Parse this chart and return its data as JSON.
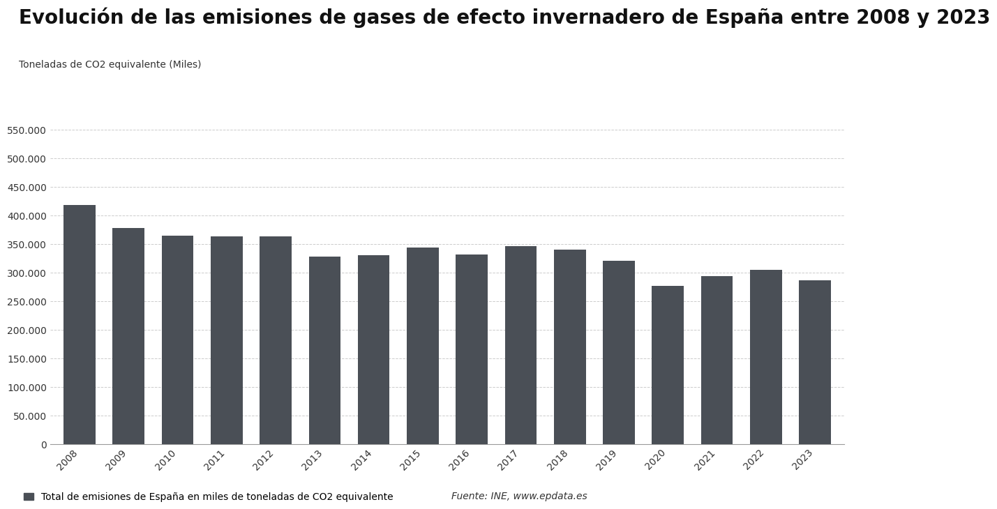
{
  "title": "Evolución de las emisiones de gases de efecto invernadero de España entre 2008 y 2023",
  "ylabel": "Toneladas de CO2 equivalente (Miles)",
  "years": [
    2008,
    2009,
    2010,
    2011,
    2012,
    2013,
    2014,
    2015,
    2016,
    2017,
    2018,
    2019,
    2020,
    2021,
    2022,
    2023
  ],
  "values": [
    419000,
    378000,
    365000,
    364000,
    364000,
    328000,
    330000,
    344000,
    332000,
    347000,
    340000,
    321000,
    277000,
    294000,
    305000,
    287000
  ],
  "bar_color": "#4a4f56",
  "background_color": "#ffffff",
  "grid_color": "#cccccc",
  "ylim": [
    0,
    550000
  ],
  "yticks": [
    0,
    50000,
    100000,
    150000,
    200000,
    250000,
    300000,
    350000,
    400000,
    450000,
    500000,
    550000
  ],
  "legend_label": "Total de emisiones de España en miles de toneladas de CO2 equivalente",
  "source_text": "Fuente: INE, www.epdata.es",
  "title_fontsize": 20,
  "ylabel_fontsize": 10,
  "tick_fontsize": 10,
  "legend_fontsize": 10
}
